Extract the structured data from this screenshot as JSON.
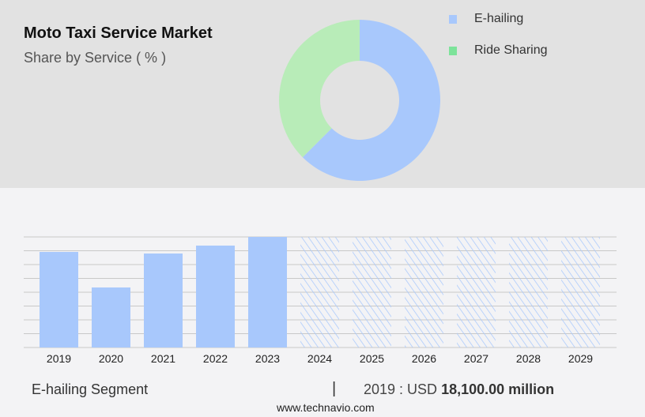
{
  "chart_data": [
    {
      "type": "pie",
      "donut": true,
      "title": "Moto Taxi Service Market",
      "subtitle": "Share by Service ( % )",
      "slices": [
        {
          "name": "E-hailing",
          "value": 62.5,
          "color": "#a8c8fc"
        },
        {
          "name": "Ride Sharing",
          "value": 37.5,
          "color": "#b8ecb8"
        }
      ],
      "legend_colors": [
        "#a8c8fc",
        "#7de39a"
      ],
      "legend": "top-right"
    },
    {
      "type": "bar",
      "categories": [
        "2019",
        "2020",
        "2021",
        "2022",
        "2023",
        "2024",
        "2025",
        "2026",
        "2027",
        "2028",
        "2029"
      ],
      "values": [
        18100,
        11370,
        17800,
        19300,
        20940,
        null,
        null,
        null,
        null,
        null,
        null
      ],
      "forecast_from": "2024",
      "color": "#a8c8fc",
      "ylim": [
        0,
        20940
      ],
      "grid": true,
      "unit": "USD million"
    }
  ],
  "footer": {
    "segment": "E-hailing Segment",
    "separator": "|",
    "year_label": "2019 : USD ",
    "value": "18,100.00 million",
    "site": "www.technavio.com"
  }
}
